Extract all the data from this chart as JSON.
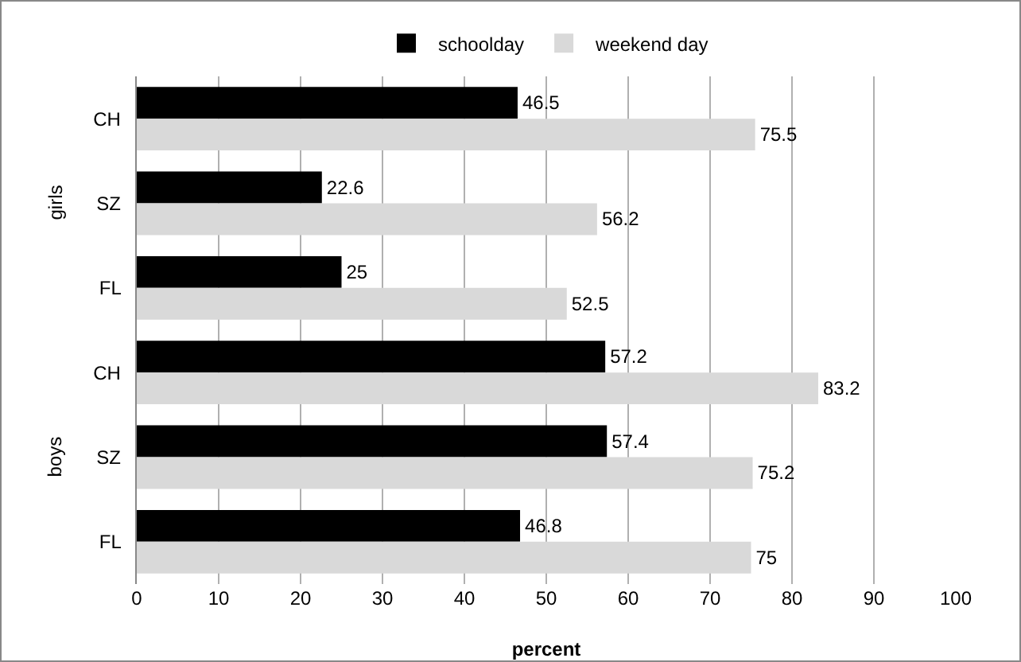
{
  "chart_data": {
    "type": "bar",
    "orientation": "horizontal",
    "xlabel": "percent",
    "categories": [
      "CH",
      "SZ",
      "FL",
      "CH",
      "SZ",
      "FL"
    ],
    "series": [
      {
        "name": "schoolday",
        "color": "#000000",
        "values": [
          46.5,
          22.6,
          25,
          57.2,
          57.4,
          46.8
        ]
      },
      {
        "name": "weekend day",
        "color": "#d9d9d9",
        "values": [
          75.5,
          56.2,
          52.5,
          83.2,
          75.2,
          75
        ]
      }
    ],
    "xlim": [
      0,
      100
    ],
    "xticks": [
      0,
      10,
      20,
      30,
      40,
      50,
      60,
      70,
      80,
      90,
      100
    ],
    "annotations": [
      "girls",
      "boys"
    ],
    "data_labels": true,
    "grid": "x",
    "legend": "top"
  }
}
